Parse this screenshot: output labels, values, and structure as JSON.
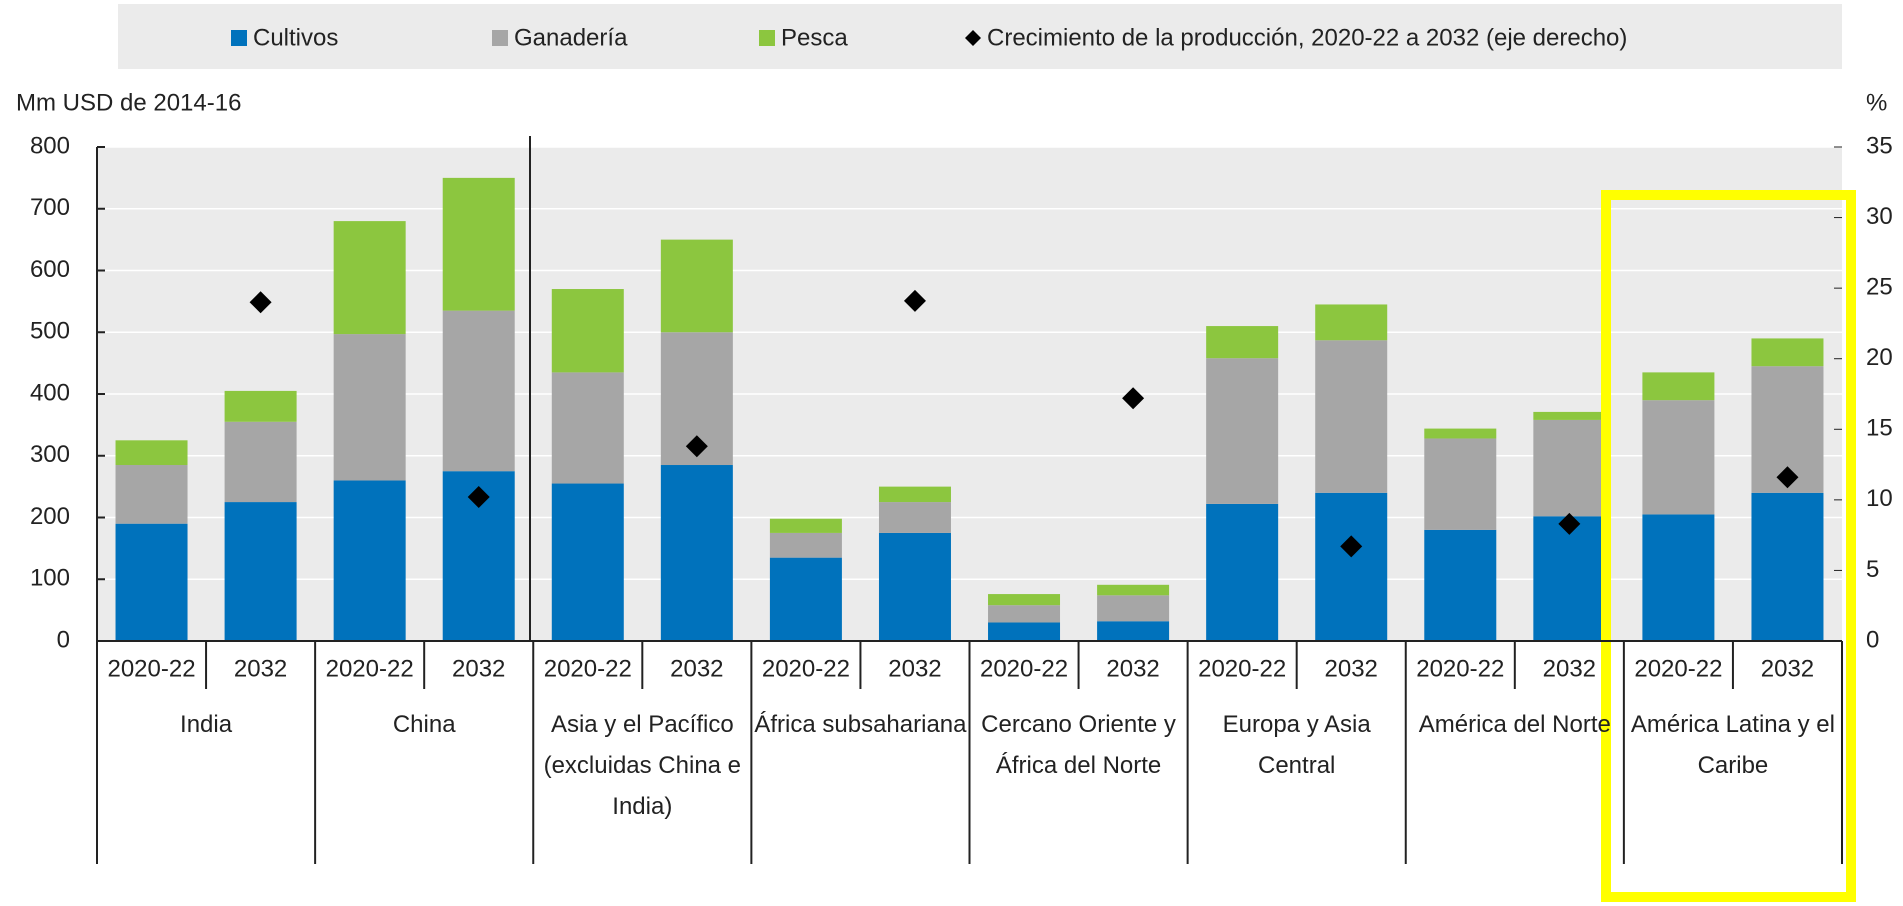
{
  "chart_data": {
    "type": "bar",
    "stacked": true,
    "y_label": "Mm USD de 2014-16",
    "y2_label": "%",
    "categories": [
      "2020-22",
      "2032",
      "2020-22",
      "2032",
      "2020-22",
      "2032",
      "2020-22",
      "2032",
      "2020-22",
      "2032",
      "2020-22",
      "2032",
      "2020-22",
      "2032",
      "2020-22",
      "2032"
    ],
    "groups": [
      "India",
      "China",
      "Asia y el Pacífico (excluidas China e India)",
      "África subsahariana",
      "Cercano Oriente y África del Norte",
      "Europa y Asia Central",
      "América del Norte",
      "América Latina y el Caribe"
    ],
    "series": [
      {
        "name": "Cultivos",
        "color": "#0072bc",
        "values": [
          190,
          225,
          260,
          275,
          255,
          285,
          135,
          175,
          30,
          32,
          222,
          240,
          180,
          202,
          205,
          240
        ]
      },
      {
        "name": "Ganadería",
        "color": "#a6a6a6",
        "values": [
          95,
          130,
          237,
          260,
          180,
          215,
          40,
          50,
          28,
          42,
          236,
          247,
          148,
          156,
          185,
          205
        ]
      },
      {
        "name": "Pesca",
        "color": "#8cc63f",
        "values": [
          40,
          50,
          183,
          215,
          135,
          150,
          23,
          25,
          18,
          17,
          52,
          58,
          16,
          13,
          45,
          45
        ]
      },
      {
        "name": "Crecimiento de la producción, 2020-22 a 2032 (eje derecho)",
        "color": "#000000",
        "type": "scatter",
        "marker": "diamond",
        "axis": "y2",
        "values": [
          null,
          24.0,
          null,
          10.2,
          null,
          13.8,
          null,
          24.1,
          null,
          17.2,
          null,
          6.7,
          null,
          8.3,
          null,
          11.6
        ]
      }
    ],
    "ylim": [
      0,
      800
    ],
    "yticks": [
      0,
      100,
      200,
      300,
      400,
      500,
      600,
      700,
      800
    ],
    "y2lim": [
      0,
      35
    ],
    "y2ticks": [
      0,
      5,
      10,
      15,
      20,
      25,
      30,
      35
    ],
    "grid": true
  }
}
